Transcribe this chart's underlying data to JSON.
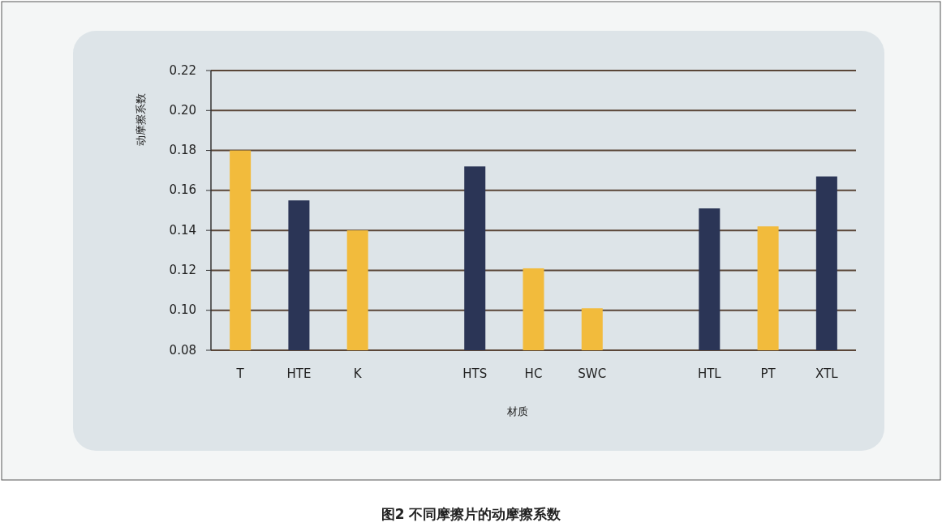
{
  "chart_data": {
    "type": "bar",
    "title": "图2 不同摩擦片的动摩擦系数",
    "xlabel": "材质",
    "ylabel": "动摩擦系数",
    "categories": [
      "T",
      "HTE",
      "K",
      null,
      "HTS",
      "HC",
      "SWC",
      null,
      "HTL",
      "PT",
      "XTL"
    ],
    "values": [
      0.18,
      0.155,
      0.14,
      null,
      0.172,
      0.121,
      0.101,
      null,
      0.151,
      0.142,
      0.167
    ],
    "colors": [
      "#f2bb3c",
      "#2b3556",
      "#f2bb3c",
      null,
      "#2b3556",
      "#f2bb3c",
      "#f2bb3c",
      null,
      "#2b3556",
      "#f2bb3c",
      "#2b3556"
    ],
    "ylim": [
      0.08,
      0.22
    ],
    "yticks": [
      {
        "value": 0.08,
        "label": "0.08"
      },
      {
        "value": 0.1,
        "label": "0.10"
      },
      {
        "value": 0.12,
        "label": "0.12"
      },
      {
        "value": 0.14,
        "label": "0.14"
      },
      {
        "value": 0.16,
        "label": "0.16"
      },
      {
        "value": 0.18,
        "label": "0.18"
      },
      {
        "value": 0.2,
        "label": "0.20"
      },
      {
        "value": 0.22,
        "label": "0.22"
      }
    ],
    "grid": "y"
  }
}
